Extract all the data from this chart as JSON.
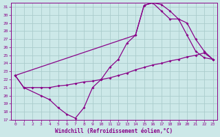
{
  "xlabel": "Windchill (Refroidissement éolien,°C)",
  "ylabel": "",
  "background_color": "#cce8e8",
  "line_color": "#880088",
  "grid_color": "#aacccc",
  "xlim": [
    -0.5,
    23.5
  ],
  "ylim": [
    17,
    31.5
  ],
  "xticks": [
    0,
    1,
    2,
    3,
    4,
    5,
    6,
    7,
    8,
    9,
    10,
    11,
    12,
    13,
    14,
    15,
    16,
    17,
    18,
    19,
    20,
    21,
    22,
    23
  ],
  "yticks": [
    17,
    18,
    19,
    20,
    21,
    22,
    23,
    24,
    25,
    26,
    27,
    28,
    29,
    30,
    31
  ],
  "line1_x": [
    0,
    1,
    3,
    4,
    5,
    6,
    7,
    8,
    9,
    10,
    11,
    12,
    13,
    14,
    15,
    16,
    17,
    18,
    19,
    20,
    21,
    22,
    23
  ],
  "line1_y": [
    22.5,
    21.0,
    20.0,
    19.5,
    18.5,
    17.7,
    17.2,
    18.5,
    21.0,
    22.0,
    23.5,
    24.5,
    26.5,
    27.5,
    31.2,
    31.5,
    31.3,
    30.5,
    29.5,
    27.5,
    25.5,
    24.7,
    24.5
  ],
  "line2_x": [
    0,
    1,
    2,
    3,
    4,
    5,
    6,
    7,
    8,
    9,
    10,
    11,
    12,
    13,
    14,
    15,
    16,
    17,
    18,
    19,
    20,
    21,
    22,
    23
  ],
  "line2_y": [
    22.5,
    21.0,
    21.0,
    21.0,
    21.0,
    21.2,
    21.3,
    21.5,
    21.7,
    21.8,
    22.0,
    22.2,
    22.5,
    22.8,
    23.2,
    23.5,
    23.8,
    24.0,
    24.3,
    24.5,
    24.8,
    25.0,
    25.3,
    24.5
  ],
  "line3_x": [
    0,
    14,
    15,
    16,
    17,
    18,
    19,
    20,
    21,
    22,
    23
  ],
  "line3_y": [
    22.5,
    27.5,
    31.2,
    31.5,
    30.5,
    29.5,
    29.5,
    29.0,
    27.0,
    25.5,
    24.5
  ]
}
